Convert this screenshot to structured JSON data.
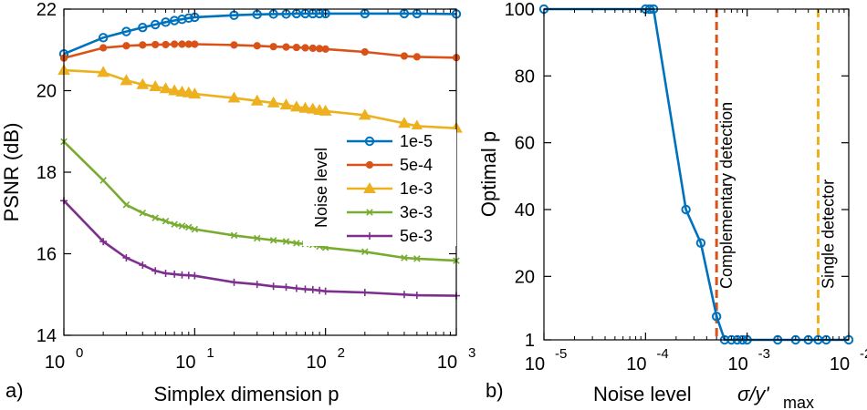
{
  "chart_data": [
    {
      "type": "line",
      "panel_label": "a)",
      "xscale": "log",
      "xlabel": "Simplex dimension p",
      "ylabel": "PSNR (dB)",
      "xlim": [
        1,
        1000
      ],
      "ylim": [
        14,
        22
      ],
      "xticks": [
        {
          "value": 1,
          "base": "10",
          "exp": "0"
        },
        {
          "value": 10,
          "base": "10",
          "exp": "1"
        },
        {
          "value": 100,
          "base": "10",
          "exp": "2"
        },
        {
          "value": 1000,
          "base": "10",
          "exp": "3"
        }
      ],
      "yticks": [
        {
          "value": 14,
          "label": "14"
        },
        {
          "value": 16,
          "label": "16"
        },
        {
          "value": 18,
          "label": "18"
        },
        {
          "value": 20,
          "label": "20"
        },
        {
          "value": 22,
          "label": "22"
        }
      ],
      "legend_title": "Noise level",
      "legend_position": "right-center",
      "x": [
        1,
        2,
        3,
        4,
        5,
        6,
        7,
        8,
        9,
        10,
        20,
        30,
        40,
        50,
        60,
        70,
        80,
        90,
        100,
        200,
        400,
        500,
        1000
      ],
      "series": [
        {
          "name": "1e-5",
          "color": "#0072BD",
          "marker": "circle",
          "values": [
            20.9,
            21.3,
            21.45,
            21.55,
            21.62,
            21.68,
            21.72,
            21.75,
            21.78,
            21.8,
            21.85,
            21.87,
            21.88,
            21.88,
            21.89,
            21.89,
            21.89,
            21.89,
            21.89,
            21.89,
            21.89,
            21.89,
            21.88
          ]
        },
        {
          "name": "5e-4",
          "color": "#D95319",
          "marker": "dot",
          "values": [
            20.8,
            21.05,
            21.1,
            21.12,
            21.13,
            21.13,
            21.14,
            21.14,
            21.14,
            21.14,
            21.12,
            21.1,
            21.08,
            21.07,
            21.06,
            21.05,
            21.04,
            21.03,
            21.02,
            20.95,
            20.85,
            20.83,
            20.81
          ]
        },
        {
          "name": "1e-3",
          "color": "#EDB120",
          "marker": "triangle",
          "values": [
            20.5,
            20.45,
            20.25,
            20.15,
            20.1,
            20.05,
            20.0,
            19.97,
            19.95,
            19.92,
            19.82,
            19.75,
            19.7,
            19.65,
            19.6,
            19.57,
            19.55,
            19.52,
            19.5,
            19.4,
            19.2,
            19.13,
            19.08
          ]
        },
        {
          "name": "3e-3",
          "color": "#77AC30",
          "marker": "x",
          "values": [
            18.75,
            17.8,
            17.2,
            17.0,
            16.88,
            16.8,
            16.72,
            16.68,
            16.65,
            16.6,
            16.45,
            16.38,
            16.33,
            16.3,
            16.26,
            16.24,
            16.22,
            16.18,
            16.15,
            16.05,
            15.9,
            15.88,
            15.83
          ]
        },
        {
          "name": "5e-3",
          "color": "#7E2F8E",
          "marker": "plus",
          "values": [
            17.3,
            16.3,
            15.9,
            15.72,
            15.58,
            15.52,
            15.5,
            15.48,
            15.47,
            15.46,
            15.3,
            15.25,
            15.2,
            15.18,
            15.15,
            15.13,
            15.12,
            15.1,
            15.08,
            15.05,
            15.0,
            14.98,
            14.97
          ]
        }
      ]
    },
    {
      "type": "line",
      "panel_label": "b)",
      "xscale": "log",
      "xlabel": "Noise level",
      "xlabel_math": "σ/y'",
      "xlabel_sub": "max",
      "ylabel": "Optimal p",
      "xlim": [
        1e-05,
        0.01
      ],
      "ylim": [
        1,
        100
      ],
      "xticks": [
        {
          "value": 1e-05,
          "base": "10",
          "exp": "-5"
        },
        {
          "value": 0.0001,
          "base": "10",
          "exp": "-4"
        },
        {
          "value": 0.001,
          "base": "10",
          "exp": "-3"
        },
        {
          "value": 0.01,
          "base": "10",
          "exp": "-2"
        }
      ],
      "yticks": [
        {
          "value": 1,
          "label": "1"
        },
        {
          "value": 20,
          "label": "20"
        },
        {
          "value": 40,
          "label": "40"
        },
        {
          "value": 60,
          "label": "60"
        },
        {
          "value": 80,
          "label": "80"
        },
        {
          "value": 100,
          "label": "100"
        }
      ],
      "series": [
        {
          "name": "Optimal p",
          "color": "#0072BD",
          "marker": "circle",
          "x": [
            1e-05,
            0.0001,
            0.00011,
            0.00012,
            0.00025,
            0.00035,
            0.0005,
            0.0006,
            0.0007,
            0.0008,
            0.0009,
            0.001,
            0.002,
            0.003,
            0.004,
            0.005,
            0.006,
            0.01
          ],
          "values": [
            100,
            100,
            100,
            100,
            40,
            30,
            8,
            1,
            1,
            1,
            1,
            1,
            1,
            1,
            1,
            1,
            1,
            1
          ]
        }
      ],
      "vlines": [
        {
          "x": 0.0005,
          "label": "Complementary detection",
          "color": "#D95319"
        },
        {
          "x": 0.005,
          "label": "Single detector",
          "color": "#EDB120"
        }
      ]
    }
  ]
}
